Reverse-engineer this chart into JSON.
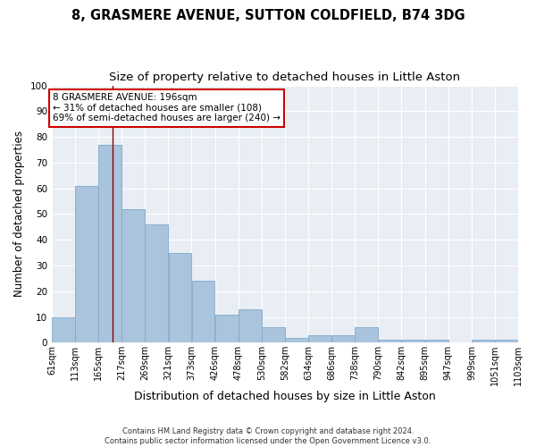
{
  "title1": "8, GRASMERE AVENUE, SUTTON COLDFIELD, B74 3DG",
  "title2": "Size of property relative to detached houses in Little Aston",
  "xlabel": "Distribution of detached houses by size in Little Aston",
  "ylabel": "Number of detached properties",
  "footer1": "Contains HM Land Registry data © Crown copyright and database right 2024.",
  "footer2": "Contains public sector information licensed under the Open Government Licence v3.0.",
  "annotation_line1": "8 GRASMERE AVENUE: 196sqm",
  "annotation_line2": "← 31% of detached houses are smaller (108)",
  "annotation_line3": "69% of semi-detached houses are larger (240) →",
  "property_size": 196,
  "bar_left_edges": [
    61,
    113,
    165,
    217,
    269,
    321,
    373,
    426,
    478,
    530,
    582,
    634,
    686,
    738,
    790,
    842,
    895,
    947,
    999,
    1051
  ],
  "bar_heights": [
    10,
    61,
    77,
    52,
    46,
    35,
    24,
    11,
    13,
    6,
    2,
    3,
    3,
    6,
    1,
    1,
    1,
    0,
    1,
    1
  ],
  "bin_width": 52,
  "tick_labels": [
    "61sqm",
    "113sqm",
    "165sqm",
    "217sqm",
    "269sqm",
    "321sqm",
    "373sqm",
    "426sqm",
    "478sqm",
    "530sqm",
    "582sqm",
    "634sqm",
    "686sqm",
    "738sqm",
    "790sqm",
    "842sqm",
    "895sqm",
    "947sqm",
    "999sqm",
    "1051sqm",
    "1103sqm"
  ],
  "bar_color": "#aac4dd",
  "bar_edge_color": "#7faac8",
  "vline_color": "#8b0000",
  "vline_x": 196,
  "annotation_box_color": "#cc0000",
  "background_color": "#e8eef4",
  "fig_background_color": "#ffffff",
  "ylim": [
    0,
    100
  ],
  "yticks": [
    0,
    10,
    20,
    30,
    40,
    50,
    60,
    70,
    80,
    90,
    100
  ],
  "grid_color": "#ffffff",
  "title_fontsize": 10.5,
  "subtitle_fontsize": 9.5,
  "xlabel_fontsize": 9,
  "ylabel_fontsize": 8.5,
  "tick_fontsize": 7,
  "footer_fontsize": 6,
  "annotation_fontsize": 7.5
}
